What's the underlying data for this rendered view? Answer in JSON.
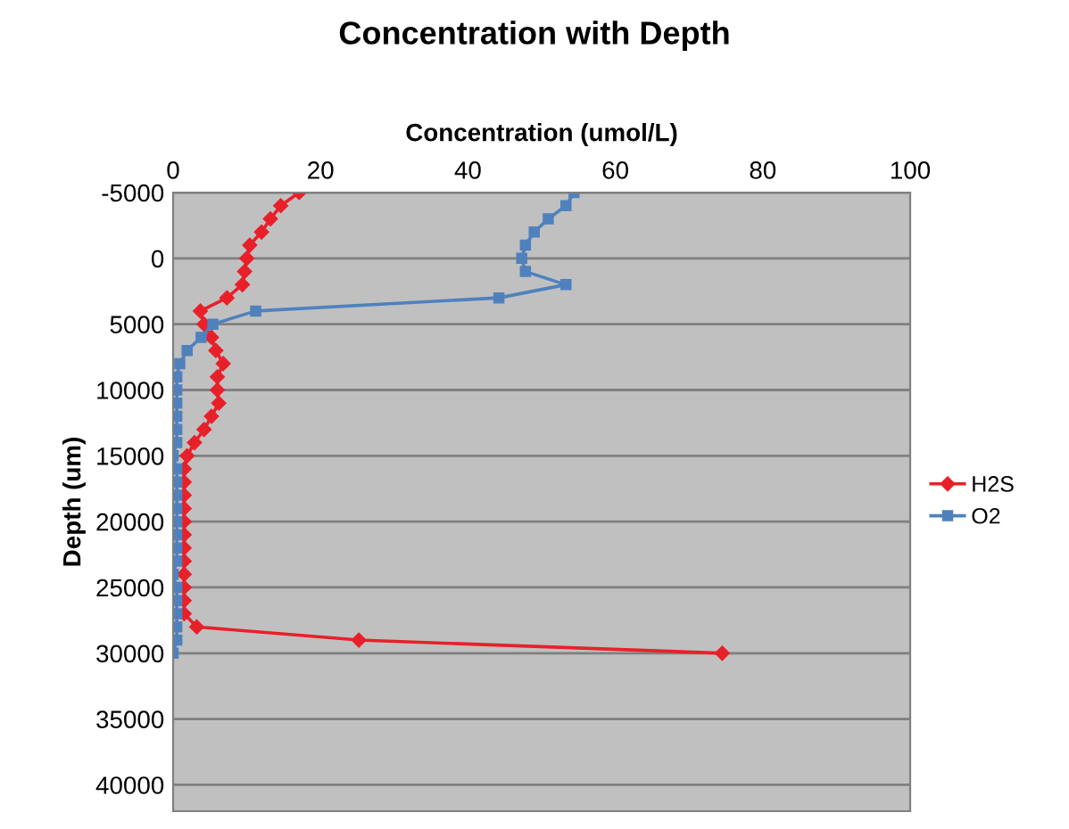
{
  "chart_data": {
    "type": "line",
    "title": "Concentration with Depth",
    "xlabel": "Concentration (umol/L)",
    "ylabel": "Depth (um)",
    "xlim": [
      0,
      100
    ],
    "xticks": [
      0,
      20,
      40,
      60,
      80,
      100
    ],
    "ylim": [
      42000,
      -5000
    ],
    "yticks": [
      -5000,
      0,
      5000,
      10000,
      15000,
      20000,
      25000,
      30000,
      35000,
      40000
    ],
    "grid": "y",
    "legend": "right",
    "series": [
      {
        "name": "H2S",
        "color": "#e8202a",
        "marker": "diamond",
        "x": [
          17.1,
          14.6,
          13.2,
          12.0,
          10.4,
          10.0,
          9.7,
          9.4,
          7.3,
          3.7,
          4.2,
          5.2,
          5.8,
          6.8,
          6.0,
          6.0,
          6.2,
          5.2,
          4.2,
          2.9,
          1.9,
          1.5,
          1.5,
          1.5,
          1.5,
          1.5,
          1.5,
          1.5,
          1.5,
          1.5,
          1.5,
          1.5,
          1.5,
          3.2,
          25.2,
          74.5
        ],
        "values": [
          -5000,
          -4000,
          -3000,
          -2000,
          -1000,
          0,
          1000,
          2000,
          3000,
          4000,
          5000,
          6000,
          7000,
          8000,
          9000,
          10000,
          11000,
          12000,
          13000,
          14000,
          15000,
          16000,
          17000,
          18000,
          19000,
          20000,
          21000,
          22000,
          23000,
          24000,
          25000,
          26000,
          27000,
          28000,
          29000,
          30000
        ]
      },
      {
        "name": "O2",
        "color": "#4f81bd",
        "marker": "square",
        "x": [
          54.4,
          53.3,
          50.9,
          49.0,
          47.8,
          47.3,
          47.8,
          53.3,
          44.2,
          11.2,
          5.4,
          3.8,
          1.9,
          0.9,
          0.5,
          0.5,
          0.5,
          0.5,
          0.5,
          0.5,
          0,
          0.5,
          0.5,
          0.5,
          0.5,
          0.5,
          0.5,
          0.5,
          0.5,
          0,
          0.5,
          0.5,
          0.5,
          0.5,
          0.5,
          0
        ],
        "values": [
          -5000,
          -4000,
          -3000,
          -2000,
          -1000,
          0,
          1000,
          2000,
          3000,
          4000,
          5000,
          6000,
          7000,
          8000,
          9000,
          10000,
          11000,
          12000,
          13000,
          14000,
          15000,
          16000,
          17000,
          18000,
          19000,
          20000,
          21000,
          22000,
          23000,
          24000,
          25000,
          26000,
          27000,
          28000,
          29000,
          30000
        ]
      }
    ]
  }
}
